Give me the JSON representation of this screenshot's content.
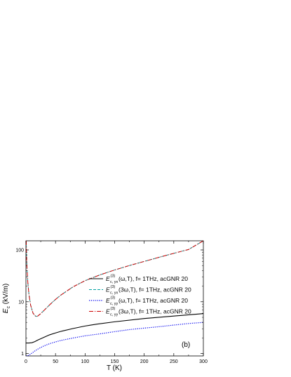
{
  "chart_data": {
    "type": "line",
    "xlabel": "T (K)",
    "ylabel": {
      "main": "E",
      "sub": "c",
      "unit": " (kV/m)"
    },
    "xlim": [
      0,
      300
    ],
    "ylim": [
      0.9,
      150
    ],
    "yscale": "log",
    "xticks": [
      0,
      50,
      100,
      150,
      200,
      250,
      300
    ],
    "yticks": [
      {
        "value": 1,
        "label": "1"
      },
      {
        "value": 10,
        "label": "10"
      },
      {
        "value": 100,
        "label": "100"
      }
    ],
    "annotation": "(b)",
    "legend_position": "right",
    "series": [
      {
        "name": {
          "sym": "E",
          "sup": "(3)",
          "sub": "c, yx",
          "arg": "(ω,T), f= 1THz, acGNR 20"
        },
        "color": "#000000",
        "dash": "none",
        "width": 1.1,
        "x": [
          0,
          5,
          10,
          15,
          20,
          30,
          40,
          50,
          60,
          80,
          100,
          120,
          150,
          200,
          250,
          300
        ],
        "y": [
          1.6,
          1.6,
          1.62,
          1.7,
          1.82,
          2.05,
          2.3,
          2.5,
          2.7,
          3.05,
          3.4,
          3.7,
          4.1,
          4.75,
          5.3,
          5.9
        ]
      },
      {
        "name": {
          "sym": "E",
          "sup": "(3)",
          "sub": "c, yx",
          "arg": "(3ω,T), f= 1THz, acGNR 20"
        },
        "color": "#00a0a0",
        "dash": "4,2",
        "width": 1.0,
        "x": [
          0.5,
          1,
          2,
          3,
          5,
          8,
          12,
          16,
          18,
          20,
          25,
          30,
          40,
          50,
          60,
          80,
          100,
          125,
          150,
          175,
          200,
          225,
          250,
          275,
          300
        ],
        "y": [
          150,
          75,
          40,
          25,
          14,
          8.5,
          6.0,
          5.3,
          5.2,
          5.3,
          5.9,
          6.7,
          8.7,
          11.1,
          13.7,
          19.5,
          25.5,
          33,
          41,
          50,
          60,
          72,
          86,
          102,
          150
        ]
      },
      {
        "name": {
          "sym": "E",
          "sup": "(3)",
          "sub": "c, yy",
          "arg": "(ω,T), f= 1THz, acGNR 20"
        },
        "color": "#0000ee",
        "dash": "1.2,1.6",
        "width": 1.2,
        "x": [
          0,
          3,
          5,
          8,
          10,
          15,
          20,
          30,
          40,
          50,
          60,
          80,
          100,
          125,
          150,
          175,
          200,
          225,
          250,
          275,
          300
        ],
        "y": [
          0.9,
          0.91,
          0.93,
          0.98,
          1.02,
          1.12,
          1.22,
          1.4,
          1.55,
          1.68,
          1.8,
          2.0,
          2.2,
          2.4,
          2.65,
          2.9,
          3.1,
          3.3,
          3.55,
          3.8,
          4.0
        ]
      },
      {
        "name": {
          "sym": "E",
          "sup": "(3)",
          "sub": "c, yy",
          "arg": "(3ω,T), f= 1THz, acGNR 20"
        },
        "color": "#cc0000",
        "dash": "6,2,1.2,2",
        "width": 1.0,
        "x": [
          0.5,
          1,
          2,
          3,
          5,
          8,
          12,
          16,
          18,
          20,
          25,
          30,
          40,
          50,
          60,
          80,
          100,
          125,
          150,
          175,
          200,
          225,
          250,
          275,
          300
        ],
        "y": [
          150,
          75,
          40,
          25,
          14,
          8.5,
          6.0,
          5.3,
          5.2,
          5.3,
          5.9,
          6.7,
          8.7,
          11.1,
          13.7,
          19.5,
          25.5,
          33,
          41,
          50,
          60,
          72,
          86,
          102,
          150
        ]
      }
    ]
  }
}
